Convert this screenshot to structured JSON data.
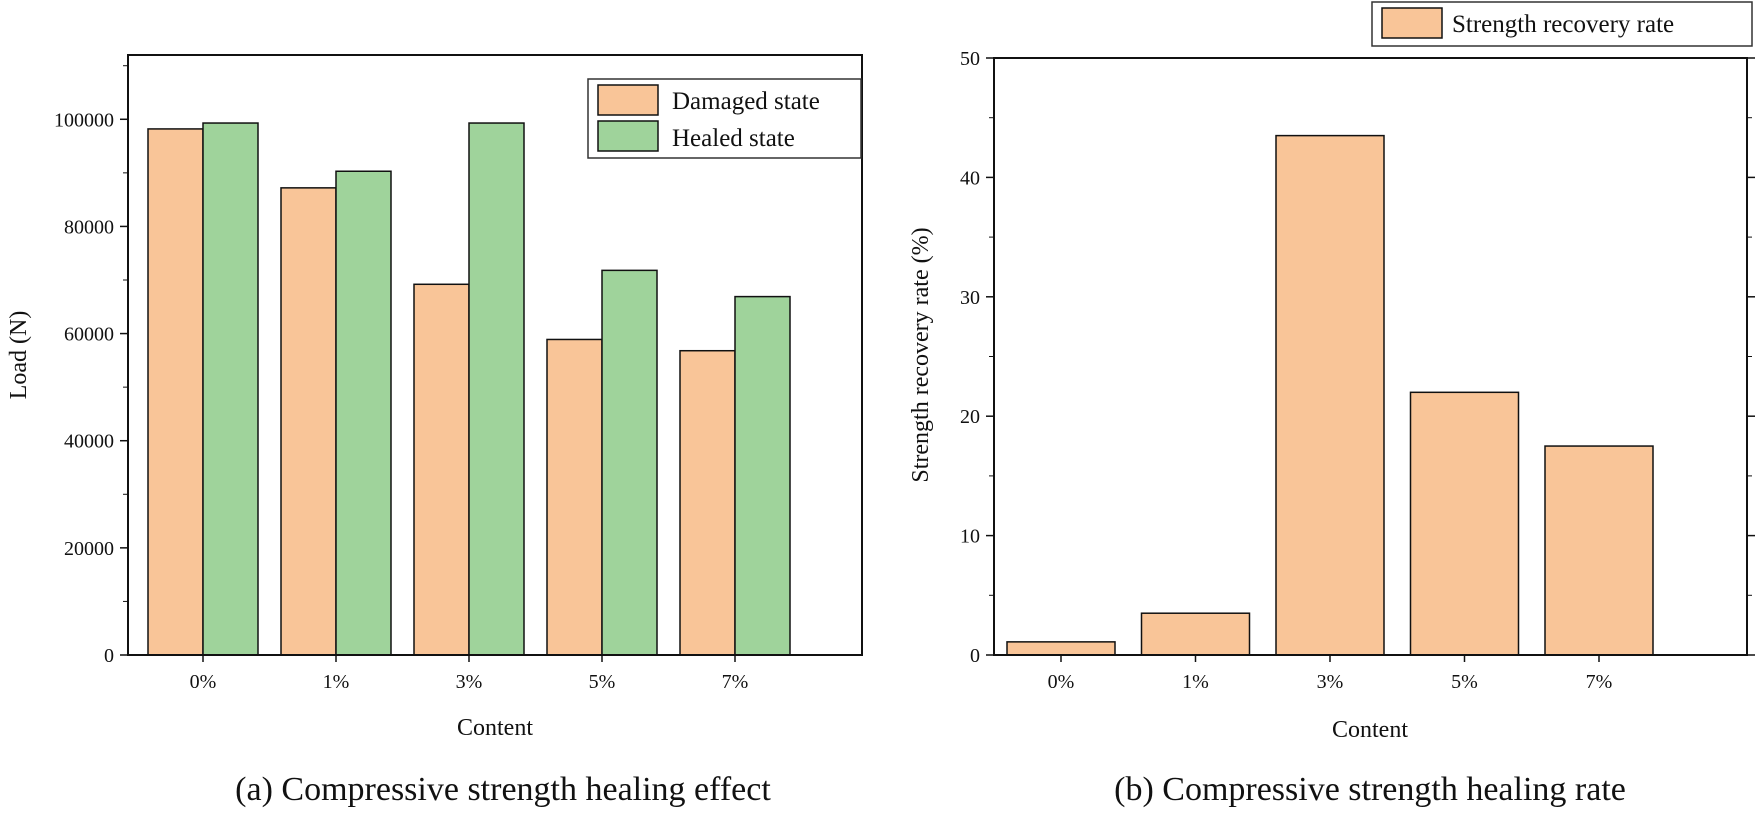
{
  "colors": {
    "damaged": "#f9c598",
    "healed": "#9fd39b",
    "stroke": "#111111"
  },
  "chart_data": [
    {
      "type": "bar",
      "caption": "(a) Compressive strength healing effect",
      "categories": [
        "0%",
        "1%",
        "3%",
        "5%",
        "7%"
      ],
      "series": [
        {
          "name": "Damaged state",
          "values": [
            98200,
            87200,
            69200,
            58900,
            56800
          ]
        },
        {
          "name": "Healed state",
          "values": [
            99300,
            90300,
            99300,
            71800,
            66900
          ]
        }
      ],
      "xlabel": "Content",
      "ylabel": "Load (N)",
      "ylim": [
        0,
        112000
      ],
      "yticks": [
        0,
        20000,
        40000,
        60000,
        80000,
        100000
      ],
      "legend": "top-right",
      "grid": false
    },
    {
      "type": "bar",
      "caption": "(b) Compressive strength healing rate",
      "categories": [
        "0%",
        "1%",
        "3%",
        "5%",
        "7%"
      ],
      "series": [
        {
          "name": "Strength recovery rate",
          "values": [
            1.1,
            3.5,
            43.5,
            22.0,
            17.5
          ]
        }
      ],
      "xlabel": "Content",
      "ylabel": "Strength recovery rate (%)",
      "ylim": [
        0,
        50
      ],
      "yticks": [
        0,
        10,
        20,
        30,
        40,
        50
      ],
      "legend": "top-right, outside",
      "grid": false
    }
  ]
}
